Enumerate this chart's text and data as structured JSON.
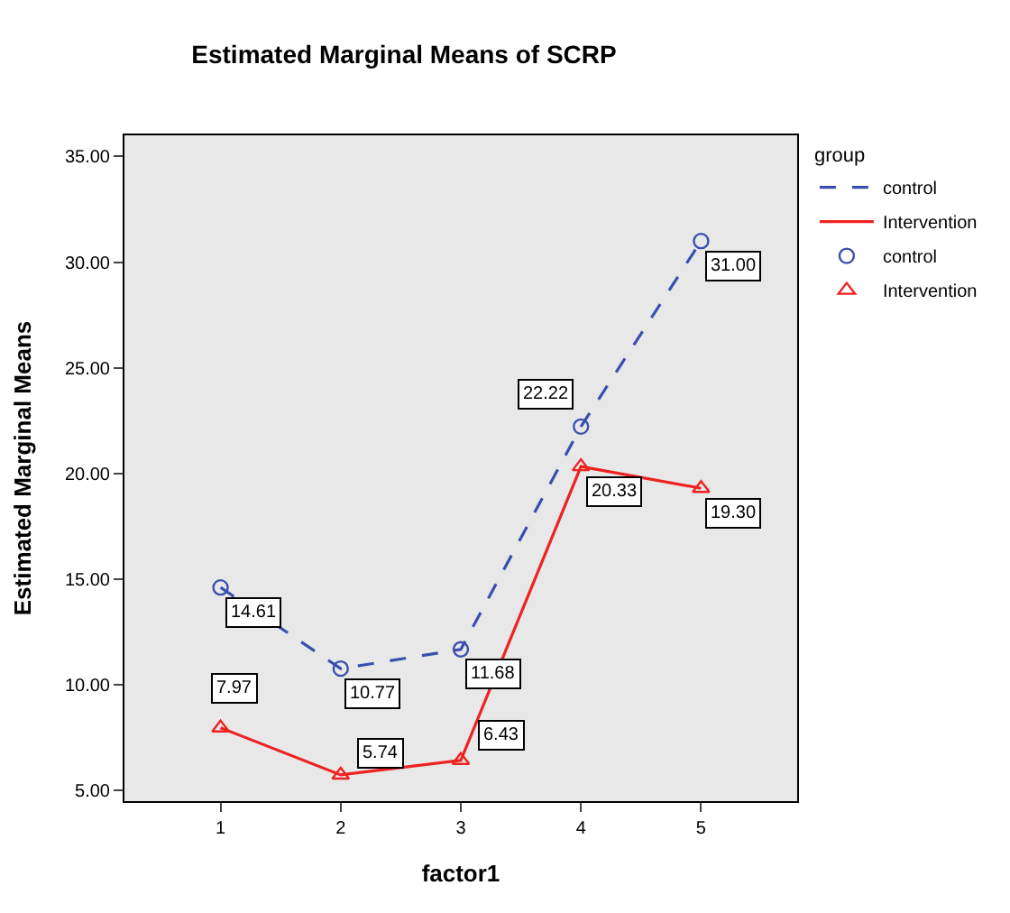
{
  "chart_data": {
    "type": "line",
    "title": "Estimated Marginal Means of SCRP",
    "xlabel": "factor1",
    "ylabel": "Estimated Marginal Means",
    "legend_title": "group",
    "x": [
      1,
      2,
      3,
      4,
      5
    ],
    "xlim": [
      0.2,
      5.8
    ],
    "xticks": [
      1,
      2,
      3,
      4,
      5
    ],
    "ylim": [
      4.5,
      36
    ],
    "yticks": [
      {
        "value": 5,
        "label": "5.00"
      },
      {
        "value": 10,
        "label": "10.00"
      },
      {
        "value": 15,
        "label": "15.00"
      },
      {
        "value": 20,
        "label": "20.00"
      },
      {
        "value": 25,
        "label": "25.00"
      },
      {
        "value": 30,
        "label": "30.00"
      },
      {
        "value": 35,
        "label": "35.00"
      }
    ],
    "grid": false,
    "legend": "right",
    "series": [
      {
        "name": "control",
        "color": "#3a4fb0",
        "line_style": "dashed",
        "marker": "none",
        "values": [
          14.61,
          10.77,
          11.68,
          22.22,
          31.0
        ]
      },
      {
        "name": "Intervention",
        "color": "#ee2222",
        "line_style": "solid",
        "marker": "none",
        "values": [
          7.97,
          5.74,
          6.43,
          20.33,
          19.3
        ]
      },
      {
        "name": "control",
        "type": "scatter",
        "color": "#3a4fb0",
        "marker": "circle",
        "values": [
          14.61,
          10.77,
          11.68,
          22.22,
          31.0
        ],
        "value_labels": [
          "14.61",
          "10.77",
          "11.68",
          "22.22",
          "31.00"
        ]
      },
      {
        "name": "Intervention",
        "type": "scatter",
        "color": "#ee2222",
        "marker": "triangle",
        "values": [
          7.97,
          5.74,
          6.43,
          20.33,
          19.3
        ],
        "value_labels": [
          "7.97",
          "5.74",
          "6.43",
          "20.33",
          "19.30"
        ]
      }
    ]
  }
}
